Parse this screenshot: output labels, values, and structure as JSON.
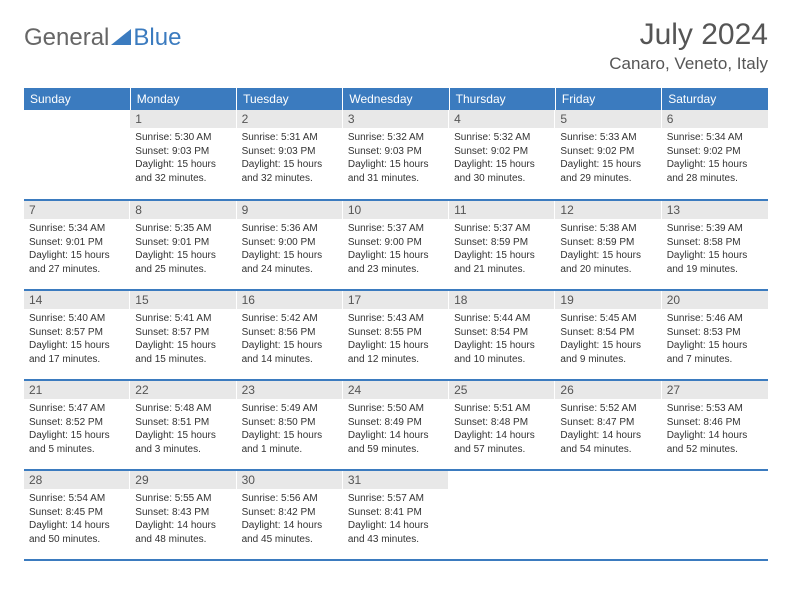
{
  "logo": {
    "text1": "General",
    "text2": "Blue"
  },
  "title": "July 2024",
  "location": "Canaro, Veneto, Italy",
  "colors": {
    "header_bg": "#3b7bbf",
    "header_text": "#ffffff",
    "daynum_bg": "#e8e8e8",
    "border": "#3b7bbf",
    "text": "#333333",
    "title_color": "#555555"
  },
  "weekdays": [
    "Sunday",
    "Monday",
    "Tuesday",
    "Wednesday",
    "Thursday",
    "Friday",
    "Saturday"
  ],
  "weeks": [
    [
      {
        "n": "",
        "sr": "",
        "ss": "",
        "dl": ""
      },
      {
        "n": "1",
        "sr": "Sunrise: 5:30 AM",
        "ss": "Sunset: 9:03 PM",
        "dl": "Daylight: 15 hours and 32 minutes."
      },
      {
        "n": "2",
        "sr": "Sunrise: 5:31 AM",
        "ss": "Sunset: 9:03 PM",
        "dl": "Daylight: 15 hours and 32 minutes."
      },
      {
        "n": "3",
        "sr": "Sunrise: 5:32 AM",
        "ss": "Sunset: 9:03 PM",
        "dl": "Daylight: 15 hours and 31 minutes."
      },
      {
        "n": "4",
        "sr": "Sunrise: 5:32 AM",
        "ss": "Sunset: 9:02 PM",
        "dl": "Daylight: 15 hours and 30 minutes."
      },
      {
        "n": "5",
        "sr": "Sunrise: 5:33 AM",
        "ss": "Sunset: 9:02 PM",
        "dl": "Daylight: 15 hours and 29 minutes."
      },
      {
        "n": "6",
        "sr": "Sunrise: 5:34 AM",
        "ss": "Sunset: 9:02 PM",
        "dl": "Daylight: 15 hours and 28 minutes."
      }
    ],
    [
      {
        "n": "7",
        "sr": "Sunrise: 5:34 AM",
        "ss": "Sunset: 9:01 PM",
        "dl": "Daylight: 15 hours and 27 minutes."
      },
      {
        "n": "8",
        "sr": "Sunrise: 5:35 AM",
        "ss": "Sunset: 9:01 PM",
        "dl": "Daylight: 15 hours and 25 minutes."
      },
      {
        "n": "9",
        "sr": "Sunrise: 5:36 AM",
        "ss": "Sunset: 9:00 PM",
        "dl": "Daylight: 15 hours and 24 minutes."
      },
      {
        "n": "10",
        "sr": "Sunrise: 5:37 AM",
        "ss": "Sunset: 9:00 PM",
        "dl": "Daylight: 15 hours and 23 minutes."
      },
      {
        "n": "11",
        "sr": "Sunrise: 5:37 AM",
        "ss": "Sunset: 8:59 PM",
        "dl": "Daylight: 15 hours and 21 minutes."
      },
      {
        "n": "12",
        "sr": "Sunrise: 5:38 AM",
        "ss": "Sunset: 8:59 PM",
        "dl": "Daylight: 15 hours and 20 minutes."
      },
      {
        "n": "13",
        "sr": "Sunrise: 5:39 AM",
        "ss": "Sunset: 8:58 PM",
        "dl": "Daylight: 15 hours and 19 minutes."
      }
    ],
    [
      {
        "n": "14",
        "sr": "Sunrise: 5:40 AM",
        "ss": "Sunset: 8:57 PM",
        "dl": "Daylight: 15 hours and 17 minutes."
      },
      {
        "n": "15",
        "sr": "Sunrise: 5:41 AM",
        "ss": "Sunset: 8:57 PM",
        "dl": "Daylight: 15 hours and 15 minutes."
      },
      {
        "n": "16",
        "sr": "Sunrise: 5:42 AM",
        "ss": "Sunset: 8:56 PM",
        "dl": "Daylight: 15 hours and 14 minutes."
      },
      {
        "n": "17",
        "sr": "Sunrise: 5:43 AM",
        "ss": "Sunset: 8:55 PM",
        "dl": "Daylight: 15 hours and 12 minutes."
      },
      {
        "n": "18",
        "sr": "Sunrise: 5:44 AM",
        "ss": "Sunset: 8:54 PM",
        "dl": "Daylight: 15 hours and 10 minutes."
      },
      {
        "n": "19",
        "sr": "Sunrise: 5:45 AM",
        "ss": "Sunset: 8:54 PM",
        "dl": "Daylight: 15 hours and 9 minutes."
      },
      {
        "n": "20",
        "sr": "Sunrise: 5:46 AM",
        "ss": "Sunset: 8:53 PM",
        "dl": "Daylight: 15 hours and 7 minutes."
      }
    ],
    [
      {
        "n": "21",
        "sr": "Sunrise: 5:47 AM",
        "ss": "Sunset: 8:52 PM",
        "dl": "Daylight: 15 hours and 5 minutes."
      },
      {
        "n": "22",
        "sr": "Sunrise: 5:48 AM",
        "ss": "Sunset: 8:51 PM",
        "dl": "Daylight: 15 hours and 3 minutes."
      },
      {
        "n": "23",
        "sr": "Sunrise: 5:49 AM",
        "ss": "Sunset: 8:50 PM",
        "dl": "Daylight: 15 hours and 1 minute."
      },
      {
        "n": "24",
        "sr": "Sunrise: 5:50 AM",
        "ss": "Sunset: 8:49 PM",
        "dl": "Daylight: 14 hours and 59 minutes."
      },
      {
        "n": "25",
        "sr": "Sunrise: 5:51 AM",
        "ss": "Sunset: 8:48 PM",
        "dl": "Daylight: 14 hours and 57 minutes."
      },
      {
        "n": "26",
        "sr": "Sunrise: 5:52 AM",
        "ss": "Sunset: 8:47 PM",
        "dl": "Daylight: 14 hours and 54 minutes."
      },
      {
        "n": "27",
        "sr": "Sunrise: 5:53 AM",
        "ss": "Sunset: 8:46 PM",
        "dl": "Daylight: 14 hours and 52 minutes."
      }
    ],
    [
      {
        "n": "28",
        "sr": "Sunrise: 5:54 AM",
        "ss": "Sunset: 8:45 PM",
        "dl": "Daylight: 14 hours and 50 minutes."
      },
      {
        "n": "29",
        "sr": "Sunrise: 5:55 AM",
        "ss": "Sunset: 8:43 PM",
        "dl": "Daylight: 14 hours and 48 minutes."
      },
      {
        "n": "30",
        "sr": "Sunrise: 5:56 AM",
        "ss": "Sunset: 8:42 PM",
        "dl": "Daylight: 14 hours and 45 minutes."
      },
      {
        "n": "31",
        "sr": "Sunrise: 5:57 AM",
        "ss": "Sunset: 8:41 PM",
        "dl": "Daylight: 14 hours and 43 minutes."
      },
      {
        "n": "",
        "sr": "",
        "ss": "",
        "dl": ""
      },
      {
        "n": "",
        "sr": "",
        "ss": "",
        "dl": ""
      },
      {
        "n": "",
        "sr": "",
        "ss": "",
        "dl": ""
      }
    ]
  ]
}
